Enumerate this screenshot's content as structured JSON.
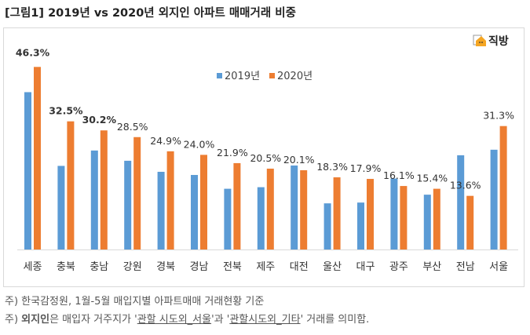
{
  "title": "[그림1] 2019년 vs 2020년 외지인 아파트 매매거래 비중",
  "logo": {
    "text": "직방",
    "icon": "house-icon"
  },
  "notes": {
    "line1": "주) 한국감정원,  1월-5월 매입지별 아파트매매 거래현황 기준",
    "line2_prefix": "주) ",
    "line2_bold": "외지인",
    "line2_a": "은 매입자 거주지가 '",
    "line2_u1": "관할 시도외_서울",
    "line2_b": "'과 '",
    "line2_u2": "관할시도외_기타",
    "line2_c": "' 거래를 의미함."
  },
  "chart_data": {
    "type": "bar",
    "categories": [
      "세종",
      "충북",
      "충남",
      "강원",
      "경북",
      "경남",
      "전북",
      "제주",
      "대전",
      "울산",
      "대구",
      "광주",
      "부산",
      "전남",
      "서울"
    ],
    "series": [
      {
        "name": "2019년",
        "color": "#5b9bd5",
        "values": [
          39.9,
          21.2,
          25.1,
          22.5,
          19.7,
          18.9,
          15.4,
          15.8,
          21.3,
          11.7,
          11.9,
          18.0,
          13.9,
          23.9,
          25.3
        ]
      },
      {
        "name": "2020년",
        "color": "#ed7d31",
        "values": [
          46.3,
          32.5,
          30.2,
          28.5,
          24.9,
          24.0,
          21.9,
          20.5,
          20.1,
          18.3,
          17.9,
          16.1,
          15.4,
          13.6,
          31.3
        ],
        "labels": [
          "46.3%",
          "32.5%",
          "30.2%",
          "28.5%",
          "24.9%",
          "24.0%",
          "21.9%",
          "20.5%",
          "20.1%",
          "18.3%",
          "17.9%",
          "16.1%",
          "15.4%",
          "13.6%",
          "31.3%"
        ],
        "bold_labels": [
          0,
          1,
          2
        ]
      }
    ],
    "ylim": [
      0,
      50
    ],
    "grid": false,
    "legend": "top-center",
    "xlabel": "",
    "ylabel": ""
  }
}
